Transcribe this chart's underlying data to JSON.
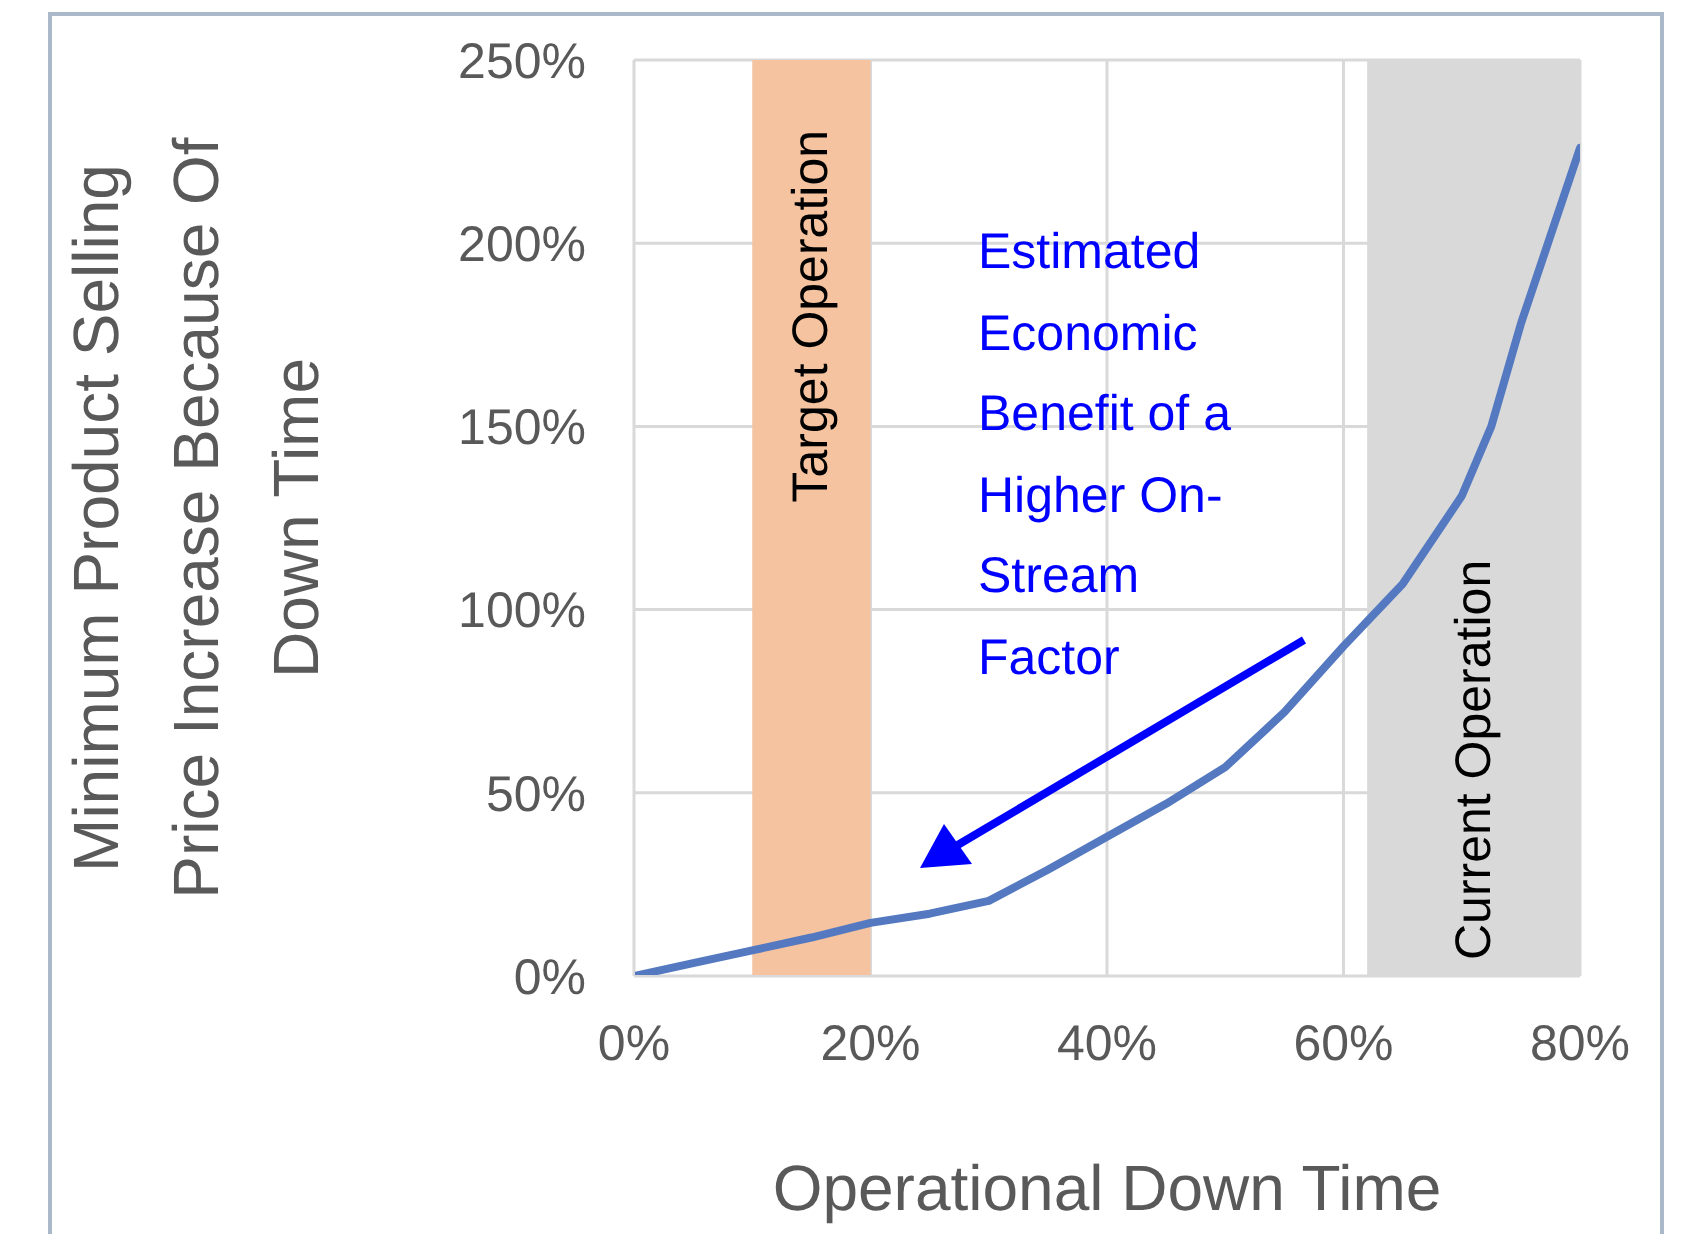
{
  "chart_data": {
    "type": "line",
    "xlabel": "Operational Down Time",
    "ylabel": "Minimum Product Selling Price Increase Because Of Down Time",
    "x": [
      0,
      5,
      10,
      15,
      20,
      25,
      30,
      35,
      40,
      45,
      50,
      55,
      60,
      65,
      70,
      72.5,
      75,
      80
    ],
    "series": [
      {
        "color": "#5479c0",
        "values": [
          0,
          3.5,
          7,
          10.5,
          14.5,
          17,
          20.5,
          29,
          38,
          47,
          57,
          72,
          90,
          107,
          131,
          150,
          178,
          226
        ]
      }
    ],
    "xlim": [
      0,
      80
    ],
    "ylim": [
      0,
      250
    ],
    "xticks": [
      {
        "value": 0,
        "label": "0%"
      },
      {
        "value": 20,
        "label": "20%"
      },
      {
        "value": 40,
        "label": "40%"
      },
      {
        "value": 60,
        "label": "60%"
      },
      {
        "value": 80,
        "label": "80%"
      }
    ],
    "yticks": [
      {
        "value": 0,
        "label": "0%"
      },
      {
        "value": 50,
        "label": "50%"
      },
      {
        "value": 100,
        "label": "100%"
      },
      {
        "value": 150,
        "label": "150%"
      },
      {
        "value": 200,
        "label": "200%"
      },
      {
        "value": 250,
        "label": "250%"
      }
    ],
    "bands": [
      {
        "axis": "x",
        "from": 10,
        "to": 20,
        "label": "Target Operation",
        "color": "#f5c3a0"
      },
      {
        "axis": "x",
        "from": 62,
        "to": 80,
        "label": "Current Operation",
        "color": "#d9d9d9"
      }
    ],
    "annotations": [
      "Estimated Economic Benefit of a Higher On-Stream Factor"
    ],
    "grid": true,
    "marker": "none",
    "line_style": "solid",
    "legend": false
  }
}
